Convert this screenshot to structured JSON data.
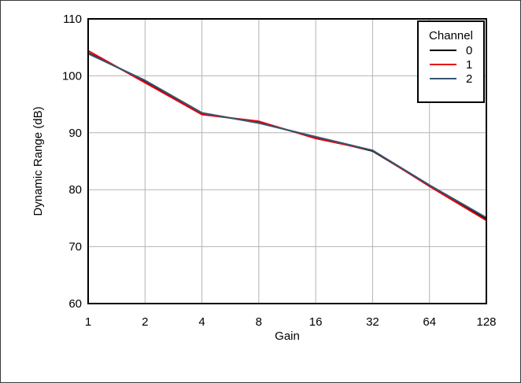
{
  "chart_data": {
    "type": "line",
    "xlabel": "Gain",
    "ylabel": "Dynamic Range (dB)",
    "x_scale": "log2",
    "x": [
      1,
      2,
      4,
      8,
      16,
      32,
      64,
      128
    ],
    "x_tick_labels": [
      "1",
      "2",
      "4",
      "8",
      "16",
      "32",
      "64",
      "128"
    ],
    "y_ticks": [
      60,
      70,
      80,
      90,
      100,
      110
    ],
    "ylim": [
      60,
      110
    ],
    "grid": true,
    "legend": {
      "title": "Channel",
      "placement": "top-right"
    },
    "series": [
      {
        "name": "0",
        "color": "#000000",
        "values": [
          104.0,
          99.1,
          93.4,
          91.8,
          89.2,
          86.8,
          80.7,
          74.9
        ]
      },
      {
        "name": "1",
        "color": "#e8000b",
        "values": [
          104.4,
          98.8,
          93.2,
          92.0,
          89.0,
          86.9,
          80.6,
          74.6
        ]
      },
      {
        "name": "2",
        "color": "#34566e",
        "values": [
          103.9,
          99.2,
          93.5,
          91.7,
          89.3,
          86.9,
          80.8,
          75.1
        ]
      }
    ]
  }
}
